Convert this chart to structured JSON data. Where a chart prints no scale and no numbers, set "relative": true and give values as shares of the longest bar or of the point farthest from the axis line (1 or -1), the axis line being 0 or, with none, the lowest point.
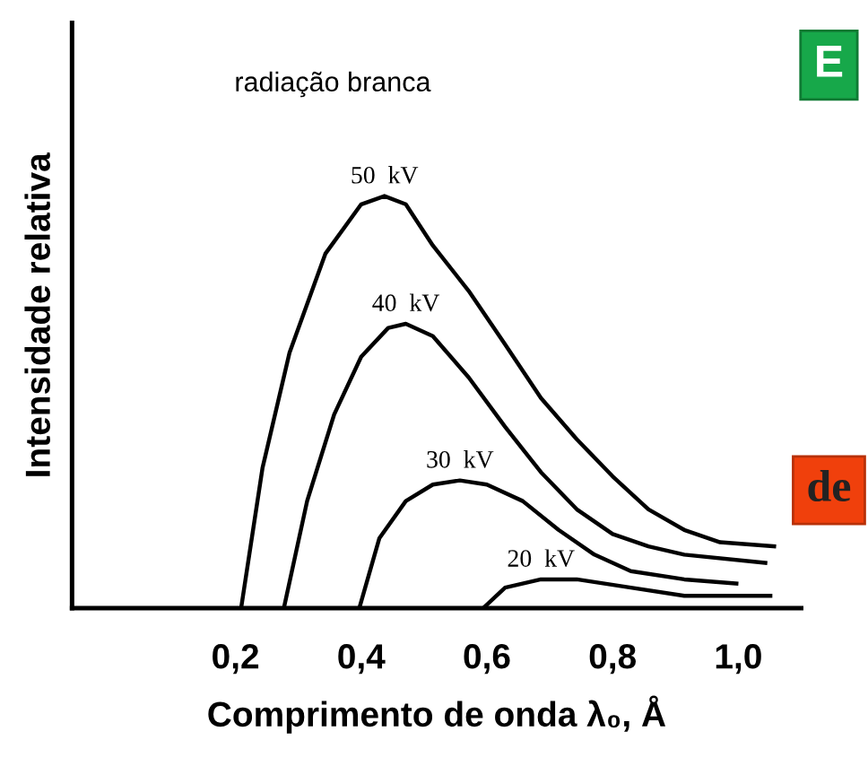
{
  "chart_data": {
    "type": "line",
    "xlabel": "Comprimento de onda λ₀, Å",
    "ylabel": "Intensidade relativa",
    "relative": true,
    "annotations": [
      "radiação branca",
      "E",
      "de"
    ],
    "xlim": [
      -0.06,
      1.1
    ],
    "xticks": [
      {
        "value": 0.2,
        "label": "0,2"
      },
      {
        "value": 0.4,
        "label": "0,4"
      },
      {
        "value": 0.6,
        "label": "0,6"
      },
      {
        "value": 0.8,
        "label": "0,8"
      },
      {
        "value": 1.0,
        "label": "1,0"
      }
    ],
    "grid": false,
    "marker": "none",
    "line_style": "solid",
    "series": [
      {
        "name": "50  kV",
        "color": "#000000",
        "x": [
          0.209,
          0.243,
          0.286,
          0.343,
          0.4,
          0.437,
          0.471,
          0.514,
          0.571,
          0.629,
          0.686,
          0.743,
          0.8,
          0.857,
          0.914,
          0.971,
          1.057
        ],
        "values": [
          0,
          0.34,
          0.62,
          0.86,
          0.98,
          1,
          0.98,
          0.88,
          0.77,
          0.64,
          0.51,
          0.41,
          0.32,
          0.24,
          0.19,
          0.16,
          0.15
        ]
      },
      {
        "name": "40  kV",
        "color": "#000000",
        "x": [
          0.277,
          0.314,
          0.357,
          0.4,
          0.443,
          0.471,
          0.514,
          0.571,
          0.629,
          0.686,
          0.743,
          0.8,
          0.857,
          0.914,
          1.043
        ],
        "values": [
          0,
          0.26,
          0.47,
          0.61,
          0.68,
          0.69,
          0.66,
          0.56,
          0.44,
          0.33,
          0.24,
          0.18,
          0.15,
          0.13,
          0.11
        ]
      },
      {
        "name": "30  kV",
        "color": "#000000",
        "x": [
          0.397,
          0.429,
          0.471,
          0.514,
          0.557,
          0.6,
          0.657,
          0.714,
          0.771,
          0.829,
          0.914,
          0.997
        ],
        "values": [
          0,
          0.17,
          0.26,
          0.3,
          0.31,
          0.3,
          0.26,
          0.19,
          0.13,
          0.09,
          0.07,
          0.06
        ]
      },
      {
        "name": "20  kV",
        "color": "#000000",
        "x": [
          0.594,
          0.629,
          0.686,
          0.743,
          0.829,
          0.914,
          1.051
        ],
        "values": [
          0,
          0.05,
          0.07,
          0.07,
          0.05,
          0.03,
          0.03
        ]
      }
    ]
  }
}
